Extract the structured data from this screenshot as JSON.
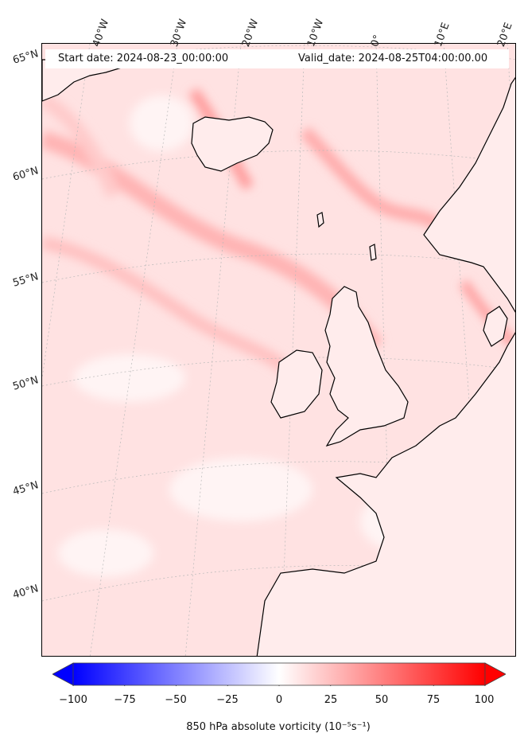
{
  "map": {
    "start_label": "Start date: 2024-08-23_00:00:00",
    "valid_label": "Valid_date: 2024-08-25T04:00:00.00",
    "longitude_labels": [
      "40°W",
      "30°W",
      "20°W",
      "10°W",
      "0°",
      "10°E",
      "20°E"
    ],
    "latitude_labels": [
      "65°N",
      "60°N",
      "55°N",
      "50°N",
      "45°N",
      "40°N"
    ],
    "colors": {
      "land_outline": "#000000",
      "positive_max": "#ff0000",
      "negative_max": "#0000ff",
      "neutral": "#ffffff"
    }
  },
  "colorbar": {
    "ticks": [
      "−100",
      "−75",
      "−50",
      "−25",
      "0",
      "25",
      "50",
      "75",
      "100"
    ],
    "min": -100,
    "max": 100,
    "title": "850 hPa absolute vorticity (10⁻⁵s⁻¹)"
  }
}
